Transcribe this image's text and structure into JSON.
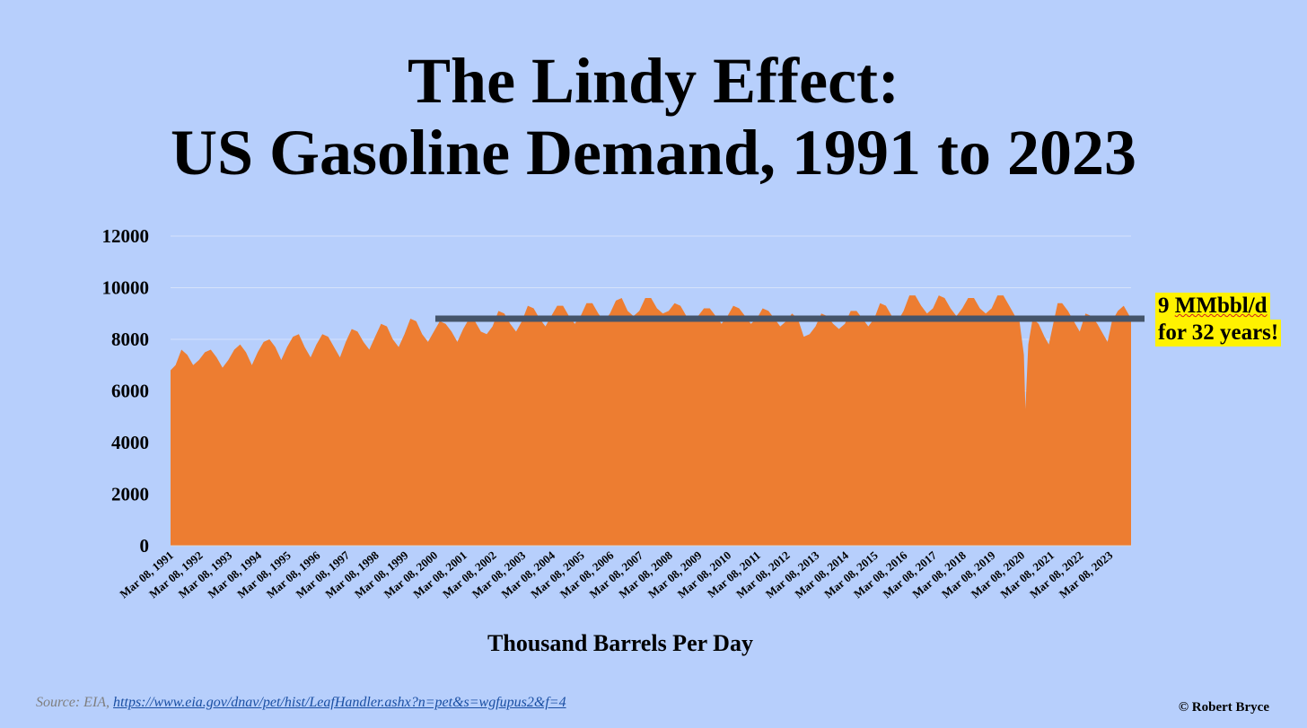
{
  "title_line1": "The Lindy Effect:",
  "title_line2": "US Gasoline Demand, 1991 to 2023",
  "callout": {
    "line1_prefix": "9 ",
    "line1_word": "MMbbl/d",
    "line2": "for 32 years!"
  },
  "source_label": "Source: EIA, ",
  "source_url": "https://www.eia.gov/dnav/pet/hist/LeafHandler.ashx?n=pet&s=wgfupus2&f=4",
  "copyright": "© Robert Bryce",
  "colors": {
    "background": "#b7cffc",
    "area": "#ed7d31",
    "reference_line": "#44546a",
    "callout_bg": "#fff200"
  },
  "chart_data": {
    "type": "area",
    "xlabel": "Thousand Barrels Per Day",
    "ylabel": "",
    "ylim": [
      0,
      12000
    ],
    "yticks": [
      0,
      2000,
      4000,
      6000,
      8000,
      10000,
      12000
    ],
    "xtick_labels": [
      "Mar 08, 1991",
      "Mar 08, 1992",
      "Mar 08, 1993",
      "Mar 08, 1994",
      "Mar 08, 1995",
      "Mar 08, 1996",
      "Mar 08, 1997",
      "Mar 08, 1998",
      "Mar 08, 1999",
      "Mar 08, 2000",
      "Mar 08, 2001",
      "Mar 08, 2002",
      "Mar 08, 2003",
      "Mar 08, 2004",
      "Mar 08, 2005",
      "Mar 08, 2006",
      "Mar 08, 2007",
      "Mar 08, 2008",
      "Mar 08, 2009",
      "Mar 08, 2010",
      "Mar 08, 2011",
      "Mar 08, 2012",
      "Mar 08, 2013",
      "Mar 08, 2014",
      "Mar 08, 2015",
      "Mar 08, 2016",
      "Mar 08, 2017",
      "Mar 08, 2018",
      "Mar 08, 2019",
      "Mar 08, 2020",
      "Mar 08, 2021",
      "Mar 08, 2022",
      "Mar 08, 2023"
    ],
    "grid": true,
    "x_range": [
      1991.18,
      2023.9
    ],
    "series": [
      {
        "x": [
          1991.18,
          1991.35,
          1991.55,
          1991.75,
          1991.95,
          1992.15,
          1992.35,
          1992.55,
          1992.75,
          1992.95,
          1993.15,
          1993.35,
          1993.55,
          1993.75,
          1993.95,
          1994.15,
          1994.35,
          1994.55,
          1994.75,
          1994.95,
          1995.15,
          1995.35,
          1995.55,
          1995.75,
          1995.95,
          1996.15,
          1996.35,
          1996.55,
          1996.75,
          1996.95,
          1997.15,
          1997.35,
          1997.55,
          1997.75,
          1997.95,
          1998.15,
          1998.35,
          1998.55,
          1998.75,
          1998.95,
          1999.15,
          1999.35,
          1999.55,
          1999.75,
          1999.95,
          2000.15,
          2000.35,
          2000.55,
          2000.75,
          2000.95,
          2001.15,
          2001.35,
          2001.55,
          2001.75,
          2001.95,
          2002.15,
          2002.35,
          2002.55,
          2002.75,
          2002.95,
          2003.15,
          2003.35,
          2003.55,
          2003.75,
          2003.95,
          2004.15,
          2004.35,
          2004.55,
          2004.75,
          2004.95,
          2005.15,
          2005.35,
          2005.55,
          2005.75,
          2005.95,
          2006.15,
          2006.35,
          2006.55,
          2006.75,
          2006.95,
          2007.15,
          2007.35,
          2007.55,
          2007.75,
          2007.95,
          2008.15,
          2008.35,
          2008.55,
          2008.75,
          2008.95,
          2009.15,
          2009.35,
          2009.55,
          2009.75,
          2009.95,
          2010.15,
          2010.35,
          2010.55,
          2010.75,
          2010.95,
          2011.15,
          2011.35,
          2011.55,
          2011.75,
          2011.95,
          2012.15,
          2012.35,
          2012.55,
          2012.75,
          2012.95,
          2013.15,
          2013.35,
          2013.55,
          2013.75,
          2013.95,
          2014.15,
          2014.35,
          2014.55,
          2014.75,
          2014.95,
          2015.15,
          2015.35,
          2015.55,
          2015.75,
          2015.95,
          2016.15,
          2016.35,
          2016.55,
          2016.75,
          2016.95,
          2017.15,
          2017.35,
          2017.55,
          2017.75,
          2017.95,
          2018.15,
          2018.35,
          2018.55,
          2018.75,
          2018.95,
          2019.15,
          2019.35,
          2019.55,
          2019.75,
          2019.95,
          2020.1,
          2020.25,
          2020.3,
          2020.4,
          2020.55,
          2020.75,
          2020.95,
          2021.1,
          2021.25,
          2021.4,
          2021.55,
          2021.75,
          2021.95,
          2022.15,
          2022.35,
          2022.55,
          2022.75,
          2022.95,
          2023.1,
          2023.25,
          2023.45,
          2023.65,
          2023.9
        ],
        "values": [
          6800,
          7000,
          7600,
          7400,
          7000,
          7200,
          7500,
          7600,
          7300,
          6900,
          7200,
          7600,
          7800,
          7500,
          7000,
          7500,
          7900,
          8000,
          7700,
          7200,
          7700,
          8100,
          8200,
          7700,
          7300,
          7800,
          8200,
          8100,
          7700,
          7300,
          7900,
          8400,
          8300,
          7900,
          7600,
          8100,
          8600,
          8500,
          8000,
          7700,
          8200,
          8800,
          8700,
          8200,
          7900,
          8300,
          8700,
          8600,
          8300,
          7900,
          8400,
          8800,
          8700,
          8300,
          8200,
          8500,
          9100,
          9000,
          8600,
          8300,
          8700,
          9300,
          9200,
          8800,
          8500,
          8900,
          9300,
          9300,
          8900,
          8600,
          8900,
          9400,
          9400,
          9000,
          8700,
          9000,
          9500,
          9600,
          9100,
          8900,
          9100,
          9600,
          9600,
          9200,
          9000,
          9100,
          9400,
          9300,
          8900,
          8800,
          8900,
          9200,
          9200,
          8900,
          8600,
          8900,
          9300,
          9200,
          8900,
          8600,
          8800,
          9200,
          9100,
          8800,
          8500,
          8700,
          9000,
          8800,
          8100,
          8200,
          8500,
          9000,
          8900,
          8600,
          8400,
          8600,
          9100,
          9100,
          8800,
          8500,
          8800,
          9400,
          9300,
          8900,
          8700,
          9100,
          9700,
          9700,
          9300,
          9000,
          9200,
          9700,
          9600,
          9200,
          8900,
          9200,
          9600,
          9600,
          9200,
          9000,
          9200,
          9700,
          9700,
          9300,
          8900,
          8700,
          7400,
          5300,
          7800,
          8800,
          8600,
          8100,
          7800,
          8600,
          9400,
          9400,
          9100,
          8700,
          8300,
          9000,
          8900,
          8600,
          8200,
          7900,
          8700,
          9100,
          9300,
          8800
        ]
      }
    ],
    "reference_line": {
      "y": 8800,
      "x_start": 2000.2,
      "x_end": 2023.9
    }
  }
}
